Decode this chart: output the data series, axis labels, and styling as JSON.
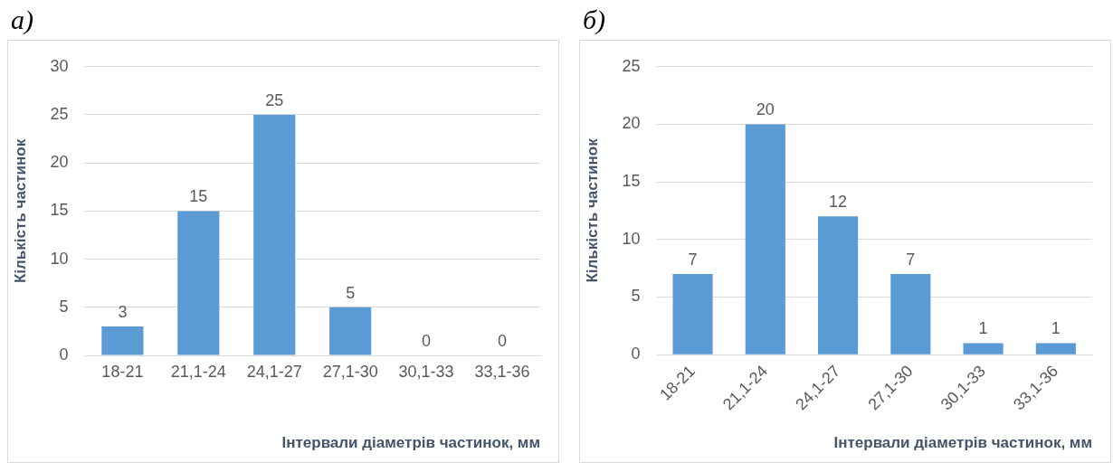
{
  "chart_data": [
    {
      "type": "bar",
      "title": "а)",
      "xlabel": "Інтервали діаметрів частинок, мм",
      "ylabel": "Кількість частинок",
      "categories": [
        "18-21",
        "21,1-24",
        "24,1-27",
        "27,1-30",
        "30,1-33",
        "33,1-36"
      ],
      "values": [
        3,
        15,
        25,
        5,
        0,
        0
      ],
      "color": "#5b9bd5",
      "ylim": [
        0,
        30
      ],
      "yticks": [
        0,
        5,
        10,
        15,
        20,
        25,
        30
      ],
      "grid": "y",
      "data_labels": true,
      "legend": false
    },
    {
      "type": "bar",
      "title": "б)",
      "xlabel": "Інтервали діаметрів частинок, мм",
      "ylabel": "Кількість частинок",
      "categories": [
        "18-21",
        "21,1-24",
        "24,1-27",
        "27,1-30",
        "30,1-33",
        "33,1-36"
      ],
      "values": [
        7,
        20,
        12,
        7,
        1,
        1
      ],
      "color": "#5b9bd5",
      "ylim": [
        0,
        25
      ],
      "yticks": [
        0,
        5,
        10,
        15,
        20,
        25
      ],
      "grid": "y",
      "data_labels": true,
      "legend": false
    }
  ]
}
